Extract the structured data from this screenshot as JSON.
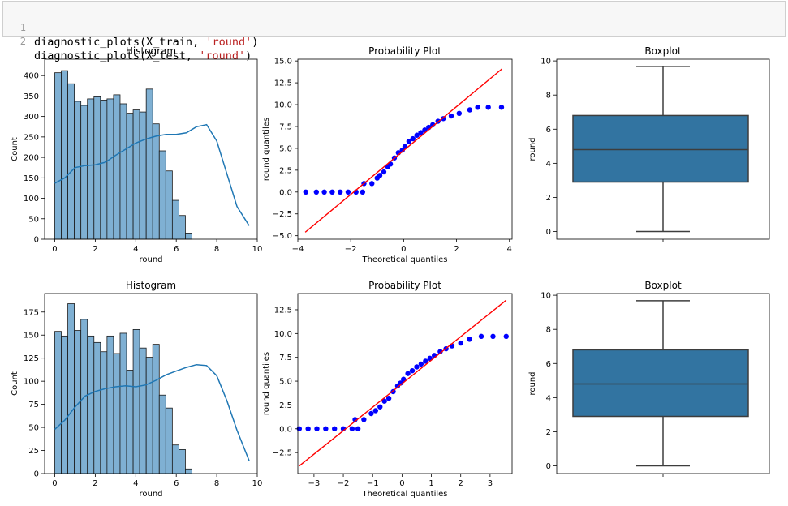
{
  "code_cell": {
    "lines": [
      {
        "number": "1",
        "func": "diagnostic_plots(X_train, ",
        "arg": "'round'",
        "close": ")"
      },
      {
        "number": "2",
        "func": "diagnostic_plots(X_test, ",
        "arg": "'round'",
        "close": ")"
      }
    ]
  },
  "colors": {
    "hist_fill": "#7fb0d3",
    "kde_line": "#1f77b4",
    "box_fill": "#3274a1",
    "qq_points": "#0000ff",
    "qq_line": "#ff0000"
  },
  "chart_data": [
    {
      "type": "bar",
      "title": "Histogram",
      "xlabel": "round",
      "ylabel": "Count",
      "xlim": [
        -0.5,
        10
      ],
      "ylim": [
        0,
        440
      ],
      "xticks": [
        "0",
        "2",
        "4",
        "6",
        "8",
        "10"
      ],
      "yticks": [
        "0",
        "50",
        "100",
        "150",
        "200",
        "250",
        "300",
        "350",
        "400"
      ],
      "bins": {
        "start": 0.0,
        "width": 0.3226
      },
      "values": [
        407,
        412,
        380,
        337,
        327,
        343,
        348,
        340,
        343,
        353,
        331,
        308,
        316,
        311,
        367,
        282,
        216,
        167,
        95,
        58,
        15
      ],
      "kde": {
        "x": [
          0,
          0.5,
          1,
          1.5,
          2,
          2.5,
          3,
          3.5,
          4,
          4.5,
          5,
          5.5,
          6,
          6.5,
          7,
          7.5,
          8,
          8.5,
          9,
          9.6
        ],
        "y": [
          137,
          150,
          175,
          180,
          182,
          188,
          205,
          220,
          235,
          245,
          252,
          256,
          256,
          260,
          275,
          280,
          240,
          160,
          80,
          33
        ]
      }
    },
    {
      "type": "scatter",
      "title": "Probability Plot",
      "xlabel": "Theoretical quantiles",
      "ylabel": "round quantiles",
      "xlim": [
        -4,
        4.1
      ],
      "ylim": [
        -5.4,
        15.2
      ],
      "xticks": [
        "−4",
        "−2",
        "0",
        "2",
        "4"
      ],
      "yticks": [
        "−5.0",
        "−2.5",
        "0.0",
        "2.5",
        "5.0",
        "7.5",
        "10.0",
        "12.5",
        "15.0"
      ],
      "fit_line": {
        "x": [
          -3.72,
          3.72
        ],
        "y": [
          -4.6,
          14.1
        ]
      },
      "points": [
        [
          -3.7,
          0
        ],
        [
          -3.3,
          0
        ],
        [
          -3.0,
          0
        ],
        [
          -2.7,
          0
        ],
        [
          -2.4,
          0
        ],
        [
          -2.1,
          0
        ],
        [
          -1.8,
          0
        ],
        [
          -1.55,
          0
        ],
        [
          -1.5,
          0.97
        ],
        [
          -1.2,
          0.97
        ],
        [
          -1.0,
          1.6
        ],
        [
          -0.9,
          1.9
        ],
        [
          -0.75,
          2.3
        ],
        [
          -0.6,
          2.9
        ],
        [
          -0.5,
          3.2
        ],
        [
          -0.35,
          3.9
        ],
        [
          -0.2,
          4.5
        ],
        [
          -0.05,
          4.8
        ],
        [
          0.05,
          5.2
        ],
        [
          0.2,
          5.8
        ],
        [
          0.35,
          6.1
        ],
        [
          0.5,
          6.5
        ],
        [
          0.65,
          6.8
        ],
        [
          0.8,
          7.1
        ],
        [
          0.95,
          7.4
        ],
        [
          1.1,
          7.7
        ],
        [
          1.3,
          8.1
        ],
        [
          1.5,
          8.4
        ],
        [
          1.8,
          8.7
        ],
        [
          2.1,
          9.0
        ],
        [
          2.5,
          9.4
        ],
        [
          2.8,
          9.7
        ],
        [
          3.2,
          9.7
        ],
        [
          3.7,
          9.7
        ]
      ]
    },
    {
      "type": "box",
      "title": "Boxplot",
      "ylabel": "round",
      "ylim": [
        -0.45,
        10.1
      ],
      "yticks": [
        "0",
        "2",
        "4",
        "6",
        "8",
        "10"
      ],
      "box": {
        "min": 0.0,
        "q1": 2.9,
        "median": 4.8,
        "q3": 6.8,
        "max": 9.68
      }
    },
    {
      "type": "bar",
      "title": "Histogram",
      "xlabel": "round",
      "ylabel": "Count",
      "xlim": [
        -0.5,
        10
      ],
      "ylim": [
        0,
        195
      ],
      "xticks": [
        "0",
        "2",
        "4",
        "6",
        "8",
        "10"
      ],
      "yticks": [
        "0",
        "25",
        "50",
        "75",
        "100",
        "125",
        "150",
        "175"
      ],
      "bins": {
        "start": 0.0,
        "width": 0.3226
      },
      "values": [
        154,
        149,
        184,
        155,
        167,
        149,
        142,
        132,
        149,
        130,
        152,
        112,
        156,
        136,
        126,
        140,
        85,
        71,
        31,
        26,
        5
      ],
      "kde": {
        "x": [
          0,
          0.5,
          1,
          1.5,
          2,
          2.5,
          3,
          3.5,
          4,
          4.5,
          5,
          5.5,
          6,
          6.5,
          7,
          7.5,
          8,
          8.5,
          9,
          9.6
        ],
        "y": [
          48,
          58,
          72,
          84,
          89,
          92,
          94,
          95,
          94,
          96,
          101,
          107,
          111,
          115,
          118,
          117,
          106,
          79,
          47,
          14
        ]
      }
    },
    {
      "type": "scatter",
      "title": "Probability Plot",
      "xlabel": "Theoretical quantiles",
      "ylabel": "round quantiles",
      "xlim": [
        -3.55,
        3.75
      ],
      "ylim": [
        -4.7,
        14.2
      ],
      "xticks": [
        "−3",
        "−2",
        "−1",
        "0",
        "1",
        "2",
        "3"
      ],
      "yticks": [
        "−2.5",
        "0.0",
        "2.5",
        "5.0",
        "7.5",
        "10.0",
        "12.5"
      ],
      "fit_line": {
        "x": [
          -3.5,
          3.55
        ],
        "y": [
          -3.9,
          13.5
        ]
      },
      "points": [
        [
          -3.5,
          0
        ],
        [
          -3.2,
          0
        ],
        [
          -2.9,
          0
        ],
        [
          -2.6,
          0
        ],
        [
          -2.3,
          0
        ],
        [
          -2.0,
          0
        ],
        [
          -1.7,
          0
        ],
        [
          -1.5,
          0
        ],
        [
          -1.6,
          0.97
        ],
        [
          -1.3,
          0.97
        ],
        [
          -1.05,
          1.6
        ],
        [
          -0.9,
          1.9
        ],
        [
          -0.75,
          2.3
        ],
        [
          -0.6,
          2.9
        ],
        [
          -0.45,
          3.2
        ],
        [
          -0.3,
          3.9
        ],
        [
          -0.15,
          4.5
        ],
        [
          -0.05,
          4.8
        ],
        [
          0.05,
          5.2
        ],
        [
          0.2,
          5.8
        ],
        [
          0.35,
          6.1
        ],
        [
          0.5,
          6.5
        ],
        [
          0.65,
          6.8
        ],
        [
          0.8,
          7.1
        ],
        [
          0.95,
          7.4
        ],
        [
          1.1,
          7.7
        ],
        [
          1.3,
          8.1
        ],
        [
          1.5,
          8.4
        ],
        [
          1.7,
          8.7
        ],
        [
          2.0,
          9.0
        ],
        [
          2.3,
          9.4
        ],
        [
          2.7,
          9.7
        ],
        [
          3.1,
          9.7
        ],
        [
          3.55,
          9.7
        ]
      ]
    },
    {
      "type": "box",
      "title": "Boxplot",
      "ylabel": "round",
      "ylim": [
        -0.45,
        10.1
      ],
      "yticks": [
        "0",
        "2",
        "4",
        "6",
        "8",
        "10"
      ],
      "box": {
        "min": 0.0,
        "q1": 2.9,
        "median": 4.8,
        "q3": 6.8,
        "max": 9.68
      }
    }
  ]
}
